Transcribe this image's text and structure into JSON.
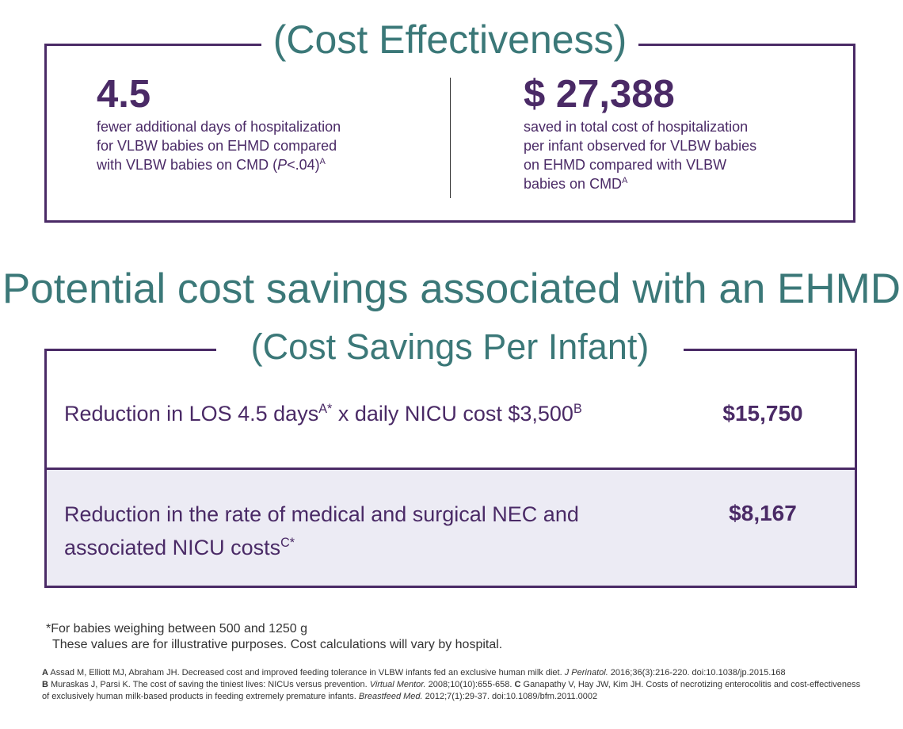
{
  "cost_effectiveness": {
    "title": "(Cost Effectiveness)",
    "left": {
      "value": "4.5",
      "line1": "fewer additional days of hospitalization",
      "line2": "for VLBW babies on EHMD compared",
      "line3_pre": "with VLBW babies on CMD (",
      "line3_p": "P",
      "line3_post": "<.04)",
      "line3_sup": "A"
    },
    "right": {
      "value": "$ 27,388",
      "line1": "saved in total cost of hospitalization",
      "line2": "per infant observed for VLBW babies",
      "line3": "on EHMD compared with VLBW",
      "line4": "babies on CMD",
      "line4_sup": "A"
    }
  },
  "heading": "Potential cost savings associated with an EHMD",
  "cost_savings": {
    "title": "(Cost Savings Per Infant)",
    "rows": [
      {
        "label_part1": "Reduction in LOS 4.5 days",
        "sup1": "A*",
        "label_part2": " x daily NICU cost $3,500",
        "sup2": "B",
        "value": "$15,750"
      },
      {
        "label_line1": "Reduction in the rate of medical and surgical NEC and",
        "label_line2": "associated NICU costs",
        "sup": "C*",
        "value": "$8,167"
      }
    ]
  },
  "footnotes": {
    "line1": "*For babies weighing between 500 and 1250 g",
    "line2": "These values are for illustrative purposes. Cost calculations will vary by hospital."
  },
  "references": {
    "a_label": "A",
    "a_text": " Assad M, Elliott MJ, Abraham JH. Decreased cost and improved feeding tolerance in VLBW infants fed an exclusive human milk diet. ",
    "a_journal": "J Perinatol.",
    "a_cite": " 2016;36(3):216-220. doi:10.1038/jp.2015.168",
    "b_label": "B",
    "b_text": " Muraskas J, Parsi K. The cost of saving the tiniest lives: NICUs versus prevention. ",
    "b_journal": "Virtual Mentor.",
    "b_cite": " 2008;10(10):655-658. ",
    "c_label": "C",
    "c_text": " Ganapathy V, Hay JW, Kim JH. Costs of necrotizing enterocolitis and cost-effectiveness of exclusively human milk-based products in feeding extremely premature infants. ",
    "c_journal": "Breastfeed Med.",
    "c_cite": " 2012;7(1):29-37. doi:10.1089/bfm.2011.0002"
  },
  "colors": {
    "purple": "#4a2a66",
    "teal": "#3b7878",
    "row_shade": "#ecebf4"
  }
}
